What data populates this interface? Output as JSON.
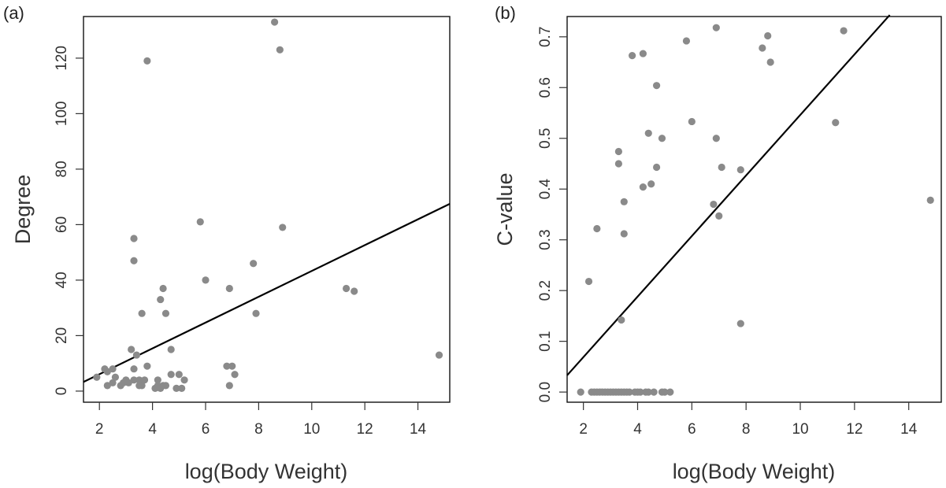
{
  "chart_data": [
    {
      "type": "scatter",
      "panel_label": "(a)",
      "xlabel": "log(Body Weight)",
      "ylabel": "Degree",
      "xlim": [
        1.4,
        15.2
      ],
      "ylim": [
        -4,
        135
      ],
      "xticks": [
        2,
        4,
        6,
        8,
        10,
        12,
        14
      ],
      "yticks": [
        0,
        20,
        40,
        60,
        80,
        100,
        120
      ],
      "point_color": "#8a8a8a",
      "line_color": "#000000",
      "fit_line": {
        "x": [
          1.4,
          15.2
        ],
        "y": [
          3.3,
          67.5
        ]
      },
      "points": [
        [
          1.9,
          5
        ],
        [
          2.2,
          8
        ],
        [
          2.3,
          7
        ],
        [
          2.3,
          2
        ],
        [
          2.5,
          8
        ],
        [
          2.5,
          3
        ],
        [
          2.6,
          5
        ],
        [
          2.8,
          2
        ],
        [
          2.9,
          3
        ],
        [
          3.0,
          4
        ],
        [
          3.1,
          3
        ],
        [
          3.2,
          15
        ],
        [
          3.3,
          55
        ],
        [
          3.3,
          47
        ],
        [
          3.3,
          8
        ],
        [
          3.3,
          4
        ],
        [
          3.4,
          13
        ],
        [
          3.5,
          4
        ],
        [
          3.5,
          2
        ],
        [
          3.6,
          28
        ],
        [
          3.6,
          2
        ],
        [
          3.7,
          4
        ],
        [
          3.8,
          119
        ],
        [
          3.8,
          9
        ],
        [
          4.1,
          1
        ],
        [
          4.2,
          2
        ],
        [
          4.2,
          4
        ],
        [
          4.3,
          33
        ],
        [
          4.3,
          1
        ],
        [
          4.4,
          2
        ],
        [
          4.4,
          37
        ],
        [
          4.5,
          28
        ],
        [
          4.5,
          2
        ],
        [
          4.7,
          15
        ],
        [
          4.7,
          6
        ],
        [
          4.9,
          1
        ],
        [
          5.0,
          6
        ],
        [
          5.1,
          1
        ],
        [
          5.2,
          4
        ],
        [
          5.8,
          61
        ],
        [
          6.0,
          40
        ],
        [
          6.8,
          9
        ],
        [
          6.9,
          37
        ],
        [
          6.9,
          2
        ],
        [
          7.0,
          9
        ],
        [
          7.1,
          6
        ],
        [
          7.8,
          46
        ],
        [
          7.9,
          28
        ],
        [
          8.6,
          133
        ],
        [
          8.8,
          123
        ],
        [
          8.9,
          59
        ],
        [
          11.3,
          37
        ],
        [
          11.6,
          36
        ],
        [
          14.8,
          13
        ]
      ]
    },
    {
      "type": "scatter",
      "panel_label": "(b)",
      "xlabel": "log(Body Weight)",
      "ylabel": "C-value",
      "xlim": [
        1.4,
        15.2
      ],
      "ylim": [
        -0.02,
        0.74
      ],
      "xticks": [
        2,
        4,
        6,
        8,
        10,
        12,
        14
      ],
      "yticks": [
        "0.0",
        "0.1",
        "0.2",
        "0.3",
        "0.4",
        "0.5",
        "0.6",
        "0.7"
      ],
      "point_color": "#8a8a8a",
      "line_color": "#000000",
      "fit_line": {
        "x": [
          1.4,
          13.3
        ],
        "y": [
          0.033,
          0.743
        ]
      },
      "points": [
        [
          1.9,
          0
        ],
        [
          2.2,
          0.218
        ],
        [
          2.3,
          0
        ],
        [
          2.4,
          0
        ],
        [
          2.5,
          0.322
        ],
        [
          2.5,
          0
        ],
        [
          2.6,
          0
        ],
        [
          2.7,
          0
        ],
        [
          2.8,
          0
        ],
        [
          2.9,
          0
        ],
        [
          3.0,
          0
        ],
        [
          3.1,
          0
        ],
        [
          3.2,
          0
        ],
        [
          3.3,
          0.474
        ],
        [
          3.3,
          0.45
        ],
        [
          3.3,
          0
        ],
        [
          3.4,
          0.142
        ],
        [
          3.4,
          0
        ],
        [
          3.5,
          0
        ],
        [
          3.5,
          0.375
        ],
        [
          3.5,
          0.312
        ],
        [
          3.6,
          0
        ],
        [
          3.7,
          0
        ],
        [
          3.8,
          0.663
        ],
        [
          3.9,
          0
        ],
        [
          4.0,
          0
        ],
        [
          4.1,
          0
        ],
        [
          4.2,
          0.667
        ],
        [
          4.2,
          0.404
        ],
        [
          4.3,
          0
        ],
        [
          4.4,
          0.51
        ],
        [
          4.4,
          0
        ],
        [
          4.5,
          0.41
        ],
        [
          4.6,
          0
        ],
        [
          4.7,
          0.443
        ],
        [
          4.7,
          0.604
        ],
        [
          4.9,
          0.5
        ],
        [
          4.9,
          0
        ],
        [
          5.0,
          0
        ],
        [
          5.2,
          0
        ],
        [
          5.8,
          0.692
        ],
        [
          6.0,
          0.533
        ],
        [
          6.8,
          0.37
        ],
        [
          6.9,
          0.718
        ],
        [
          6.9,
          0.5
        ],
        [
          7.0,
          0.347
        ],
        [
          7.1,
          0.443
        ],
        [
          7.8,
          0.438
        ],
        [
          7.8,
          0.135
        ],
        [
          8.6,
          0.678
        ],
        [
          8.8,
          0.702
        ],
        [
          8.9,
          0.65
        ],
        [
          11.3,
          0.531
        ],
        [
          11.6,
          0.712
        ],
        [
          14.8,
          0.378
        ]
      ]
    }
  ]
}
